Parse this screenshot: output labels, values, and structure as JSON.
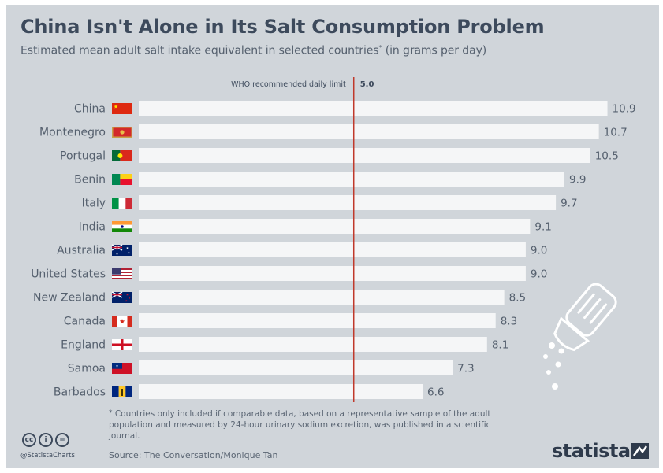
{
  "title": "China Isn't Alone in Its Salt Consumption Problem",
  "subtitle": "Estimated mean adult salt intake equivalent in selected countries",
  "subtitle_marker": "*",
  "subtitle_unit": " (in grams per day)",
  "chart_data": {
    "type": "bar",
    "orientation": "horizontal",
    "categories": [
      "China",
      "Montenegro",
      "Portugal",
      "Benin",
      "Italy",
      "India",
      "Australia",
      "United States",
      "New Zealand",
      "Canada",
      "England",
      "Samoa",
      "Barbados"
    ],
    "values": [
      10.9,
      10.7,
      10.5,
      9.9,
      9.7,
      9.1,
      9.0,
      9.0,
      8.5,
      8.3,
      8.1,
      7.3,
      6.6
    ],
    "value_labels": [
      "10.9",
      "10.7",
      "10.5",
      "9.9",
      "9.7",
      "9.1",
      "9.0",
      "9.0",
      "8.5",
      "8.3",
      "8.1",
      "7.3",
      "6.6"
    ],
    "xlim": [
      0,
      11
    ],
    "unit": "grams per day",
    "bar_color": "#f5f6f7",
    "reference_line": {
      "value": 5.0,
      "label": "WHO recommended daily limit",
      "value_label": "5.0",
      "color": "#c0392b"
    },
    "flag_icons": [
      "china-flag-icon",
      "montenegro-flag-icon",
      "portugal-flag-icon",
      "benin-flag-icon",
      "italy-flag-icon",
      "india-flag-icon",
      "australia-flag-icon",
      "united-states-flag-icon",
      "new-zealand-flag-icon",
      "canada-flag-icon",
      "england-flag-icon",
      "samoa-flag-icon",
      "barbados-flag-icon"
    ]
  },
  "footnote": "Countries only included if comparable data, based on a representative sample of the adult population and measured by 24-hour urinary sodium excretion, was published in a scientific journal.",
  "footnote_marker": "*",
  "source": "Source: The Conversation/Monique Tan",
  "handle": "@StatistaCharts",
  "brand": "statista",
  "colors": {
    "background": "#d0d5da",
    "title": "#3d4a5c",
    "text": "#55606e",
    "reference_line": "#c0392b"
  }
}
